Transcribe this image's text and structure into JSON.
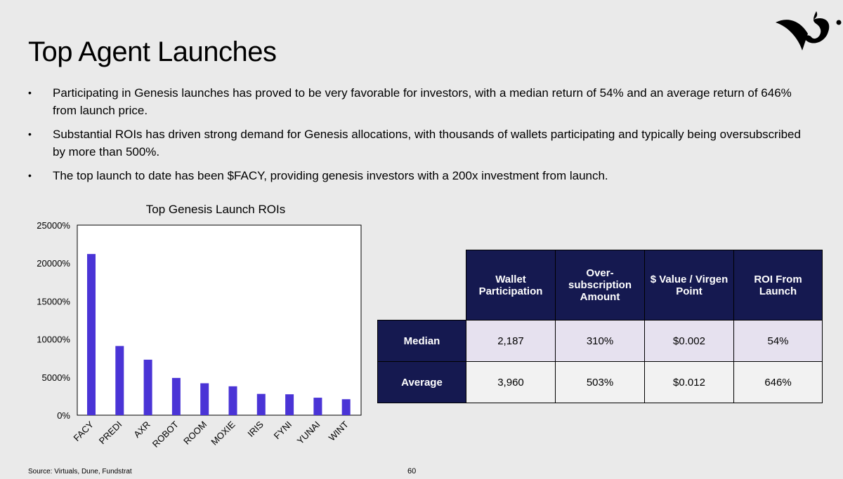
{
  "slide": {
    "title": "Top Agent Launches",
    "bullets": [
      "Participating in Genesis launches has proved to be very favorable for investors, with a median return of 54% and an average return of 646% from launch price.",
      "Substantial ROIs has driven strong demand for Genesis allocations, with thousands of wallets participating and typically being oversubscribed by more than 500%.",
      "The top launch to date has been $FACY, providing genesis investors with a 200x investment from launch."
    ],
    "bullet_marker": "•",
    "source": "Source: Virtuals, Dune, Fundstrat",
    "page_number": "60",
    "logo_icon": "brand-logo-icon"
  },
  "chart_data": {
    "type": "bar",
    "title": "Top Genesis Launch ROIs",
    "categories": [
      "FACY",
      "PREDI",
      "AXR",
      "ROBOT",
      "ROOM",
      "MOXIE",
      "IRIS",
      "FYNI",
      "YUNAI",
      "WINT"
    ],
    "values": [
      21200,
      9100,
      7300,
      4900,
      4200,
      3800,
      2800,
      2750,
      2300,
      2100
    ],
    "ylim": [
      0,
      25000
    ],
    "yticks": [
      0,
      5000,
      10000,
      15000,
      20000,
      25000
    ],
    "ytick_labels": [
      "0%",
      "5000%",
      "10000%",
      "15000%",
      "20000%",
      "25000%"
    ],
    "xlabel": "",
    "ylabel": "",
    "grid": false,
    "bar_color": "#4a34d6"
  },
  "table": {
    "columns": [
      "Wallet Participation",
      "Over-subscription Amount",
      "$ Value / Virgen Point",
      "ROI From Launch"
    ],
    "rows": [
      {
        "label": "Median",
        "values": [
          "2,187",
          "310%",
          "$0.002",
          "54%"
        ]
      },
      {
        "label": "Average",
        "values": [
          "3,960",
          "503%",
          "$0.012",
          "646%"
        ]
      }
    ],
    "header_color": "#151950"
  }
}
